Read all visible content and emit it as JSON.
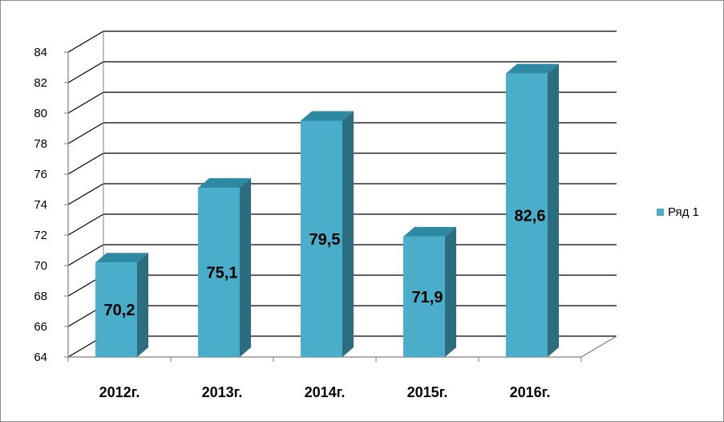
{
  "chart_data": {
    "type": "bar",
    "title": "",
    "xlabel": "",
    "ylabel": "",
    "categories": [
      "2012г.",
      "2013г.",
      "2014г.",
      "2015г.",
      "2016г."
    ],
    "series": [
      {
        "name": "Ряд 1",
        "values": [
          70.2,
          75.1,
          79.5,
          71.9,
          82.6
        ]
      }
    ],
    "data_labels": [
      "70,2",
      "75,1",
      "79,5",
      "71,9",
      "82,6"
    ],
    "ylim": [
      64,
      84
    ],
    "yticks": [
      "64",
      "66",
      "68",
      "70",
      "72",
      "74",
      "76",
      "78",
      "80",
      "82",
      "84"
    ],
    "grid": true,
    "three_d": true,
    "legend_position": "right",
    "colors": {
      "bar_front": "#4aadc9",
      "bar_top": "#2e8aa2",
      "bar_side": "#2d6d80",
      "grid": "#000000",
      "border": "#8c8c8c"
    }
  }
}
